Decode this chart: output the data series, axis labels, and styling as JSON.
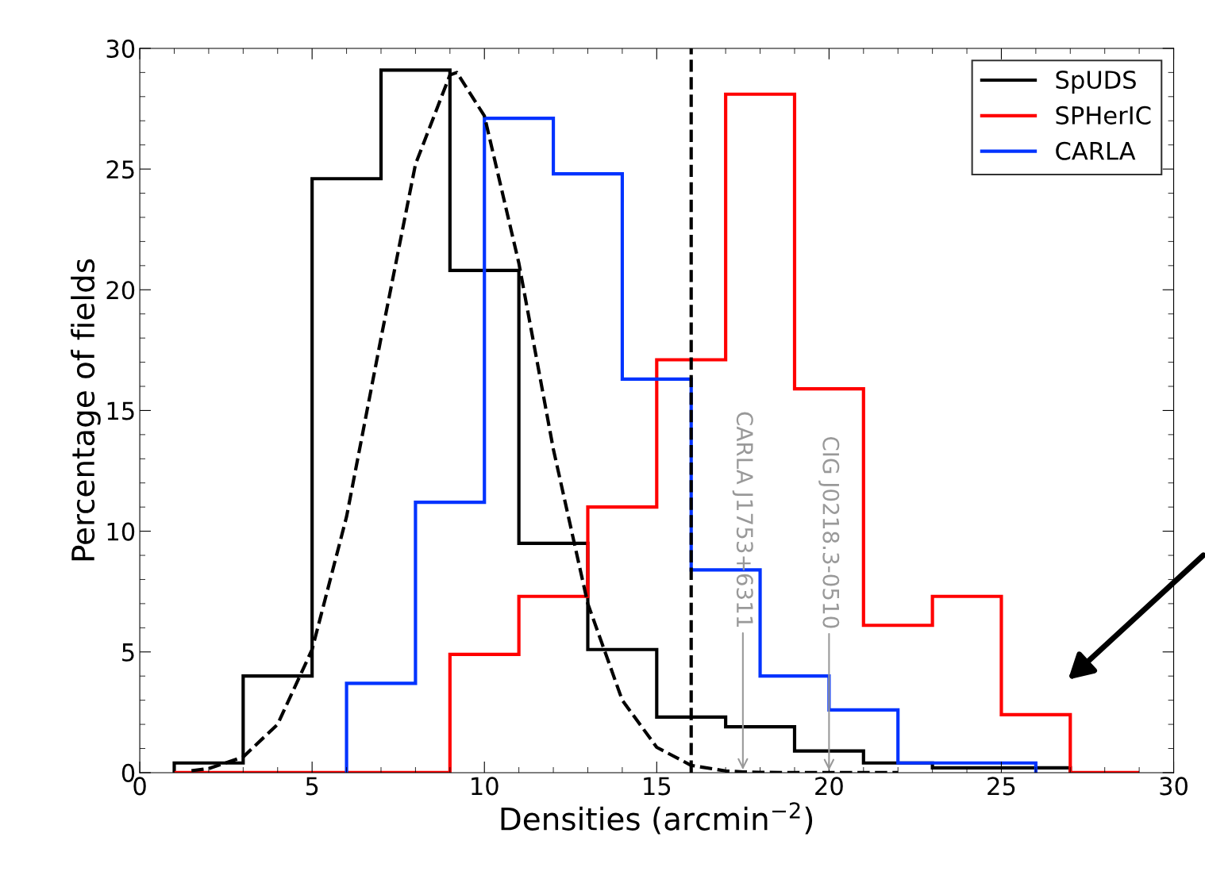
{
  "chart_data": {
    "type": "histogram",
    "xlabel": "Densities (arcmin$^{−2}$)",
    "ylabel": "Percentage of fields",
    "series": [
      {
        "name": "SpUDS",
        "color": "#000000",
        "bins": [
          1,
          3,
          5,
          7,
          9,
          11,
          13,
          15,
          17,
          19,
          21,
          23,
          25,
          27
        ],
        "values": [
          0.4,
          4.0,
          24.6,
          29.1,
          20.8,
          9.5,
          5.1,
          2.3,
          1.9,
          0.9,
          0.4,
          0.2,
          0.2
        ]
      },
      {
        "name": "SPHerIC",
        "color": "#ff0000",
        "bins": [
          1,
          3,
          5,
          7,
          9,
          11,
          13,
          15,
          17,
          19,
          21,
          23,
          25,
          27,
          29
        ],
        "values": [
          0,
          0,
          0,
          0,
          4.9,
          7.3,
          11.0,
          17.1,
          28.1,
          15.9,
          6.1,
          7.3,
          2.4,
          0
        ]
      },
      {
        "name": "CARLA",
        "color": "#0033ff",
        "bins": [
          6,
          8,
          10,
          12,
          14,
          16,
          18,
          20,
          22,
          24,
          26
        ],
        "values": [
          3.7,
          11.2,
          27.1,
          24.8,
          16.3,
          8.4,
          4.0,
          2.6,
          0.4,
          0.4
        ]
      },
      {
        "type": "line",
        "color": "#000000",
        "line_style": "dashed",
        "x": [
          1.5,
          2,
          3,
          4,
          5,
          6,
          7,
          8,
          9,
          9.2,
          10,
          11,
          12,
          13,
          14,
          15,
          16,
          17,
          17.5,
          18,
          20,
          22
        ],
        "values": [
          0.08,
          0.17,
          0.65,
          2.0,
          5.1,
          10.6,
          18.0,
          25.2,
          28.9,
          29.0,
          27.2,
          21.1,
          13.4,
          7.0,
          3.0,
          1.05,
          0.3,
          0.07,
          0.03,
          0.01,
          0,
          0
        ]
      }
    ],
    "ref_lines": [
      {
        "axis": "x",
        "value": 16,
        "color": "#000000",
        "line_style": "dashed"
      }
    ],
    "annotations": [
      {
        "text": "CARLA J1753+6311",
        "x": 17.5,
        "y": 0.03
      },
      {
        "text": "CIG J0218.3-0510",
        "x": 20,
        "y": 0
      }
    ],
    "xlim": [
      0,
      30
    ],
    "ylim": [
      0,
      30
    ],
    "xticks": [
      0,
      5,
      10,
      15,
      20,
      25,
      30
    ],
    "yticks": [
      0,
      5,
      10,
      15,
      20,
      25,
      30
    ],
    "grid": false,
    "legend": "top right"
  }
}
